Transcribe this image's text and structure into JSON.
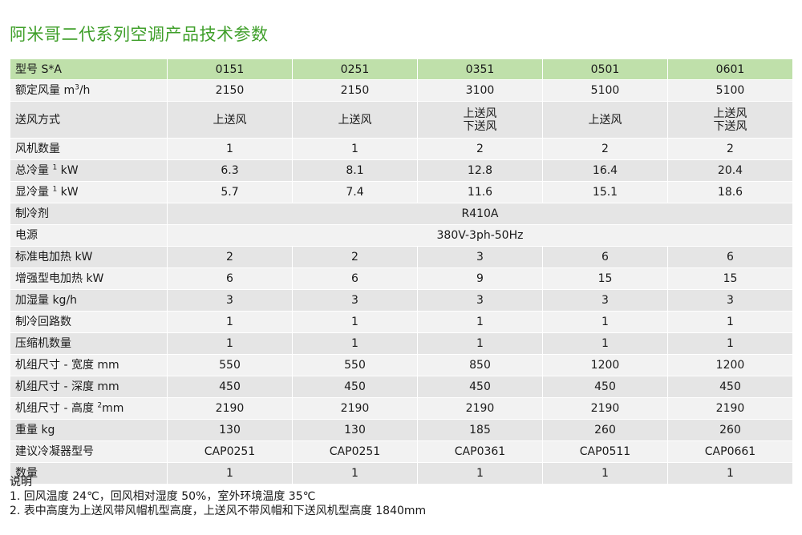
{
  "title": "阿米哥二代系列空调产品技术参数",
  "header": {
    "label": "型号 S*A",
    "models": [
      "0151",
      "0251",
      "0351",
      "0501",
      "0601"
    ]
  },
  "rows": [
    {
      "label": "额定风量 m",
      "sup": "3",
      "suffix": "/h",
      "values": [
        "2150",
        "2150",
        "3100",
        "5100",
        "5100"
      ]
    },
    {
      "label": "送风方式",
      "values": [
        "上送风",
        "上送风",
        "上送风\n下送风",
        "上送风",
        "上送风\n下送风"
      ]
    },
    {
      "label": "风机数量",
      "values": [
        "1",
        "1",
        "2",
        "2",
        "2"
      ]
    },
    {
      "label": "总冷量 ",
      "sup": "1",
      "suffix": " kW",
      "values": [
        "6.3",
        "8.1",
        "12.8",
        "16.4",
        "20.4"
      ]
    },
    {
      "label": "显冷量 ",
      "sup": "1",
      "suffix": " kW",
      "values": [
        "5.7",
        "7.4",
        "11.6",
        "15.1",
        "18.6"
      ]
    },
    {
      "label": "制冷剂",
      "merged": "R410A"
    },
    {
      "label": "电源",
      "merged": "380V-3ph-50Hz"
    },
    {
      "label": "标准电加热 kW",
      "values": [
        "2",
        "2",
        "3",
        "6",
        "6"
      ]
    },
    {
      "label": "增强型电加热 kW",
      "values": [
        "6",
        "6",
        "9",
        "15",
        "15"
      ]
    },
    {
      "label": "加湿量 kg/h",
      "values": [
        "3",
        "3",
        "3",
        "3",
        "3"
      ]
    },
    {
      "label": "制冷回路数",
      "values": [
        "1",
        "1",
        "1",
        "1",
        "1"
      ]
    },
    {
      "label": "压缩机数量",
      "values": [
        "1",
        "1",
        "1",
        "1",
        "1"
      ]
    },
    {
      "label": "机组尺寸 - 宽度 mm",
      "values": [
        "550",
        "550",
        "850",
        "1200",
        "1200"
      ]
    },
    {
      "label": "机组尺寸 - 深度 mm",
      "values": [
        "450",
        "450",
        "450",
        "450",
        "450"
      ]
    },
    {
      "label": "机组尺寸 - 高度 ",
      "sup": "2",
      "suffix": "mm",
      "values": [
        "2190",
        "2190",
        "2190",
        "2190",
        "2190"
      ]
    },
    {
      "label": "重量 kg",
      "values": [
        "130",
        "130",
        "185",
        "260",
        "260"
      ]
    },
    {
      "label": "建议冷凝器型号",
      "values": [
        "CAP0251",
        "CAP0251",
        "CAP0361",
        "CAP0511",
        "CAP0661"
      ]
    },
    {
      "label": "数量",
      "values": [
        "1",
        "1",
        "1",
        "1",
        "1"
      ]
    }
  ],
  "notes": {
    "heading": "说明",
    "items": [
      "1. 回风温度 24℃，回风相对湿度 50%，室外环境温度 35℃",
      "2. 表中高度为上送风带风帽机型高度，上送风不带风帽和下送风机型高度 1840mm"
    ]
  }
}
